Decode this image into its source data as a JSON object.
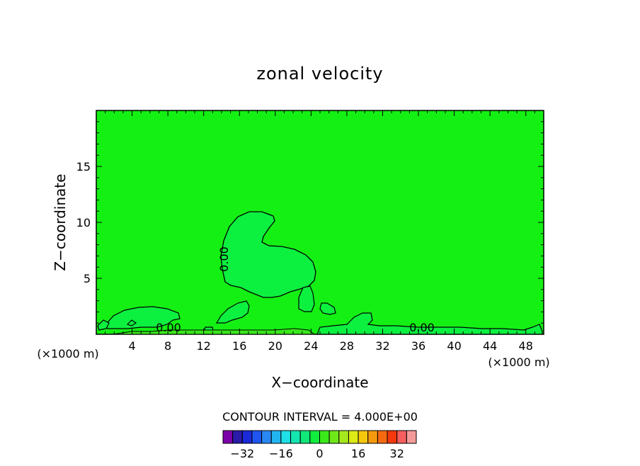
{
  "chart_data": {
    "type": "contour",
    "title": "zonal velocity",
    "xlabel": "X−coordinate",
    "ylabel": "Z−coordinate",
    "x_unit_left": "(×1000 m)",
    "x_unit_right": "(×1000 m)",
    "xlim": [
      0,
      50
    ],
    "ylim": [
      0,
      20
    ],
    "x_ticks": [
      4,
      8,
      12,
      16,
      20,
      24,
      28,
      32,
      36,
      40,
      44,
      48
    ],
    "y_ticks": [
      5,
      10,
      15
    ],
    "contour_labels": [
      "0.00",
      "0.00",
      "0.00"
    ],
    "contour_interval_label": "CONTOUR INTERVAL = 4.000E+00",
    "colorbar": {
      "colors": [
        "#7b00a8",
        "#2a1aa8",
        "#1a2ad8",
        "#1f55f0",
        "#2a88f2",
        "#22b5f0",
        "#1ee0e6",
        "#15e6b0",
        "#10e87a",
        "#12ec3e",
        "#3ae81a",
        "#6fe81a",
        "#a6e81e",
        "#dcea16",
        "#f5c80e",
        "#f59a0e",
        "#f56a10",
        "#f5380e",
        "#f55e5e",
        "#f59a9a"
      ],
      "tick_labels": [
        "−32",
        "−16",
        "0",
        "16",
        "32"
      ]
    },
    "background_color": "#14f014",
    "core_color": "#0cf040",
    "surface_color": "#3ae81a"
  }
}
